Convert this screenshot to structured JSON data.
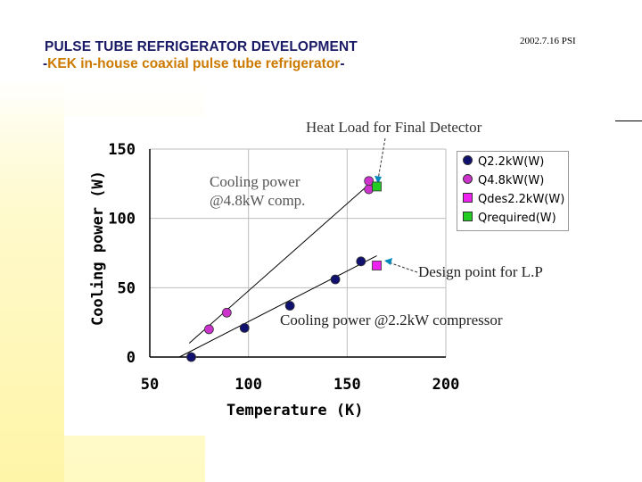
{
  "header": {
    "title": "PULSE TUBE REFRIGERATOR DEVELOPMENT",
    "subtitle_prefix": "-",
    "subtitle_main": "KEK in-house coaxial pulse tube refrigerator",
    "subtitle_suffix": "-",
    "date_code": "2002.7.16 PSI"
  },
  "annotations": {
    "heat_load": "Heat Load for Final Detector",
    "cooling_48_line1": "Cooling power",
    "cooling_48_line2": "@4.8kW comp.",
    "design_point": "Design point for L.P",
    "cooling_22": "Cooling power @2.2kW compressor"
  },
  "colors": {
    "navy": "#1a1a66",
    "orange": "#cc7a00",
    "series_q22": "#10106e",
    "series_q48": "#cc33cc",
    "series_qdes": "#ee22ee",
    "series_qreq": "#22cc22"
  },
  "chart_data": {
    "type": "scatter",
    "xlabel": "Temperature (K)",
    "ylabel": "Cooling power (W)",
    "xlim": [
      50,
      200
    ],
    "ylim": [
      0,
      150
    ],
    "xticks": [
      "50",
      "100",
      "150",
      "200"
    ],
    "yticks": [
      "0",
      "50",
      "100",
      "150"
    ],
    "grid": true,
    "legend_position": "right",
    "series": [
      {
        "name": "Q2.2kW(W)",
        "marker": "circle",
        "color": "#10106e",
        "x": [
          71,
          98,
          121,
          144,
          157
        ],
        "y": [
          0,
          21,
          37,
          56,
          69
        ]
      },
      {
        "name": "Q4.8kW(W)",
        "marker": "circle",
        "color": "#cc33cc",
        "x": [
          80,
          89,
          161,
          161
        ],
        "y": [
          20,
          32,
          121,
          127
        ]
      },
      {
        "name": "Qdes2.2kW(W)",
        "marker": "square",
        "color": "#ee22ee",
        "x": [
          165
        ],
        "y": [
          66
        ]
      },
      {
        "name": "Qrequired(W)",
        "marker": "square",
        "color": "#22cc22",
        "x": [
          165
        ],
        "y": [
          123
        ]
      }
    ],
    "fit_lines": [
      {
        "series": "Q2.2kW(W)",
        "x": [
          65,
          165
        ],
        "y": [
          0,
          73
        ]
      },
      {
        "series": "Q4.8kW(W)",
        "x": [
          70,
          163
        ],
        "y": [
          10,
          127
        ]
      }
    ]
  }
}
